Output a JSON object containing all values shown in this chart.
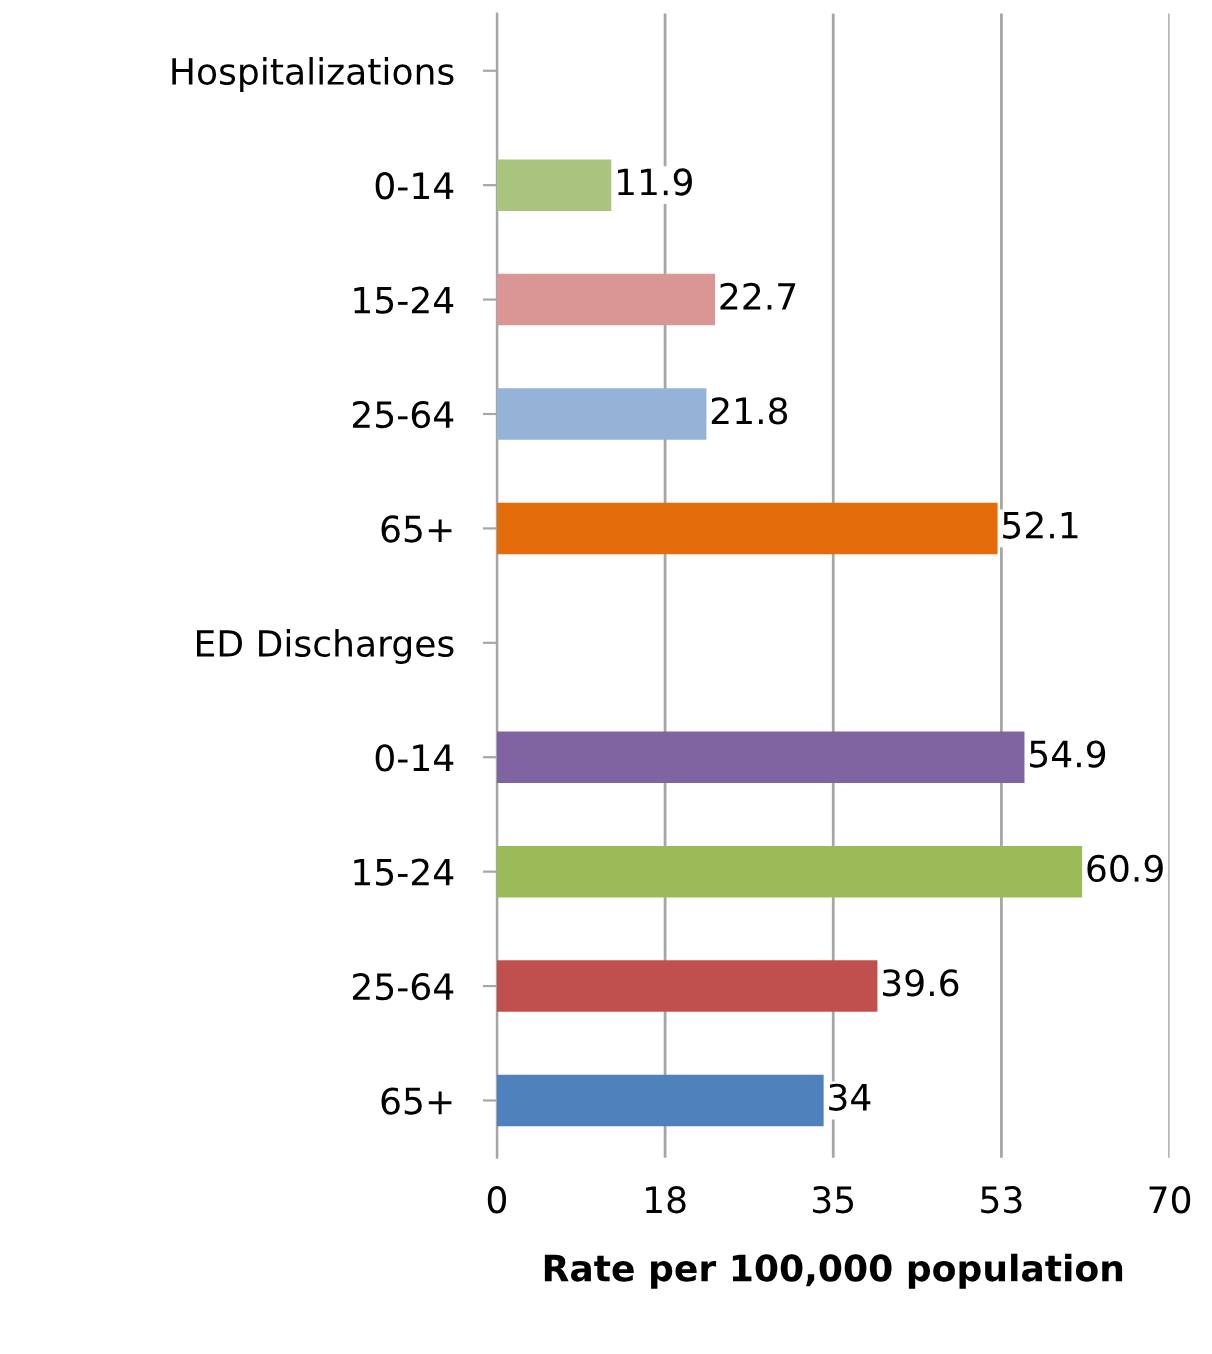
{
  "chart_data": {
    "type": "bar",
    "orientation": "horizontal",
    "xlabel": "Rate per 100,000 population",
    "categories": [
      "Hospitalizations",
      "0-14",
      "15-24",
      "25-64",
      "65+",
      "ED Discharges",
      "0-14",
      "15-24",
      "25-64",
      "65+"
    ],
    "values": [
      null,
      11.9,
      22.7,
      21.8,
      52.1,
      null,
      54.9,
      60.9,
      39.6,
      34
    ],
    "colors": [
      "#ffffff",
      "#a9c47f",
      "#d99694",
      "#95b3d7",
      "#e46c0a",
      "#ffffff",
      "#8064a2",
      "#9bbb59",
      "#c0504d",
      "#4f81bd"
    ],
    "xlim": [
      0,
      70
    ],
    "xticks": [
      0,
      {
        "value": 17.5,
        "label": "18"
      },
      35,
      {
        "value": 52.5,
        "label": "53"
      },
      70
    ],
    "grid": "x",
    "data_labels": true
  }
}
